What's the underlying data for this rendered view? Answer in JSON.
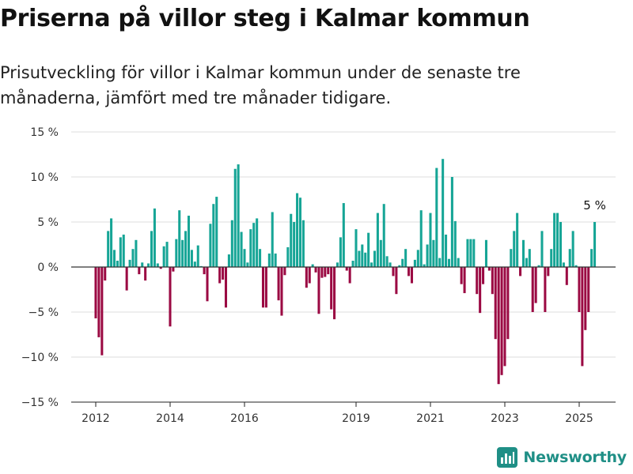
{
  "header": {
    "title": "Priserna på villor steg i Kalmar kommun",
    "subtitle": "Prisutveckling för villor i Kalmar kommun under de senaste tre månaderna, jämfört med tre månader tidigare."
  },
  "brand": {
    "name": "Newsworthy"
  },
  "colors": {
    "positive": "#16a596",
    "negative": "#9b0a43",
    "grid": "#dddddd",
    "zero": "#333333",
    "brand": "#1f8f86"
  },
  "chart_data": {
    "type": "bar",
    "ylim": [
      -15,
      15
    ],
    "y_ticks": [
      {
        "value": 15,
        "label": "15 %"
      },
      {
        "value": 10,
        "label": "10 %"
      },
      {
        "value": 5,
        "label": "5 %"
      },
      {
        "value": 0,
        "label": "0 %"
      },
      {
        "value": -5,
        "label": "−5 %"
      },
      {
        "value": -10,
        "label": "−10 %"
      },
      {
        "value": -15,
        "label": "−15 %"
      }
    ],
    "x_ticks": [
      {
        "value": 2012,
        "label": "2012"
      },
      {
        "value": 2014,
        "label": "2014"
      },
      {
        "value": 2016,
        "label": "2016"
      },
      {
        "value": 2019,
        "label": "2019"
      },
      {
        "value": 2021,
        "label": "2021"
      },
      {
        "value": 2023,
        "label": "2023"
      },
      {
        "value": 2025,
        "label": "2025"
      }
    ],
    "x_start": 2012,
    "x_step_years": 0.08333,
    "last_value_label": "5 %",
    "values": [
      -5.7,
      -7.8,
      -9.8,
      -1.5,
      4.0,
      5.4,
      1.9,
      0.7,
      3.3,
      3.6,
      -2.6,
      0.8,
      2.0,
      3.0,
      -0.8,
      0.5,
      -1.5,
      0.4,
      4.0,
      6.5,
      0.4,
      -0.2,
      2.3,
      2.8,
      -6.6,
      -0.5,
      3.1,
      6.3,
      3.0,
      4.0,
      5.7,
      1.9,
      0.6,
      2.4,
      0.1,
      -0.8,
      -3.8,
      4.8,
      7.0,
      7.8,
      -1.8,
      -1.4,
      -4.5,
      1.4,
      5.2,
      10.9,
      11.4,
      3.9,
      2.0,
      0.5,
      4.2,
      4.9,
      5.4,
      2.0,
      -4.5,
      -4.5,
      1.5,
      6.1,
      1.5,
      -3.7,
      -5.4,
      -0.9,
      2.2,
      5.9,
      5.0,
      8.2,
      7.7,
      5.2,
      -2.3,
      -1.8,
      0.3,
      -0.6,
      -5.2,
      -1.2,
      -1.1,
      -0.8,
      -4.7,
      -5.8,
      0.5,
      3.3,
      7.1,
      -0.4,
      -1.8,
      0.7,
      4.2,
      1.8,
      2.5,
      1.6,
      3.8,
      0.5,
      1.8,
      6.0,
      3.0,
      7.0,
      1.2,
      0.5,
      -1.0,
      -3.0,
      0.2,
      0.9,
      2.0,
      -1.0,
      -1.8,
      0.8,
      1.9,
      6.3,
      0.3,
      2.5,
      6.0,
      3.0,
      11.0,
      1.0,
      12.0,
      3.6,
      0.9,
      10.0,
      5.1,
      1.0,
      -1.9,
      -2.9,
      3.1,
      3.1,
      3.1,
      -3.0,
      -5.1,
      -1.9,
      3.0,
      -0.4,
      -3.0,
      -8.0,
      -13.0,
      -12.0,
      -11.0,
      -8.0,
      2.0,
      4.0,
      6.0,
      -1.0,
      3.0,
      1.0,
      2.0,
      -5.0,
      -4.0,
      0.2,
      4.0,
      -5.0,
      -1.0,
      2.0,
      6.0,
      6.0,
      5.0,
      0.5,
      -2.0,
      2.0,
      4.0,
      0.2,
      -5.0,
      -11.0,
      -7.0,
      -5.0,
      2.0,
      5.0
    ]
  }
}
